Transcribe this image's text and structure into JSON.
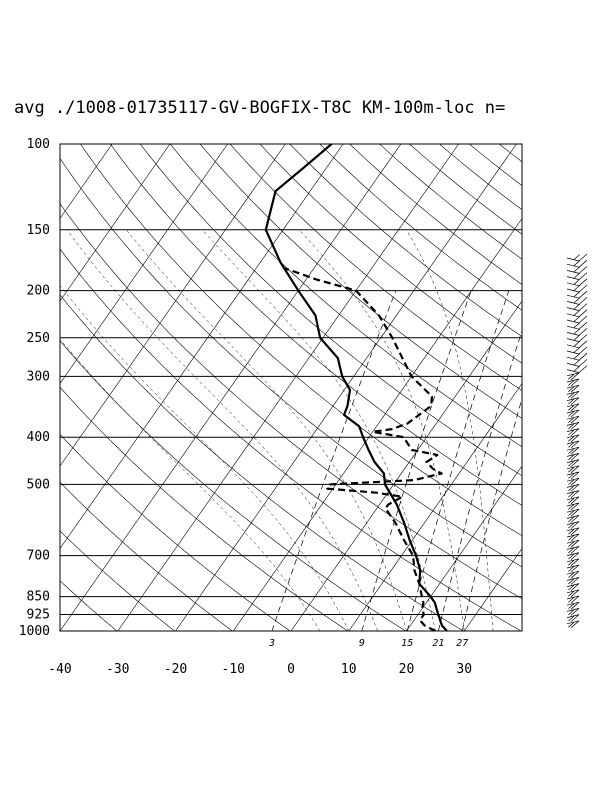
{
  "chart_data": {
    "type": "line",
    "subtype": "skew-T log-P sounding",
    "title": "avg ./1008-01735117-GV-BOGFIX-T8C KM-100m-loc n=",
    "x_axis": {
      "label": "",
      "ticks": [
        "-40",
        "-30",
        "-20",
        "-10",
        "0",
        "10",
        "20",
        "30"
      ],
      "range": [
        -40,
        40
      ]
    },
    "y_axis": {
      "label": "",
      "scale": "log",
      "range": [
        1000,
        100
      ],
      "ticks": [
        "100",
        "150",
        "200",
        "250",
        "300",
        "400",
        "500",
        "700",
        "850",
        "925",
        "1000"
      ]
    },
    "mixing_ratio_labels": [
      "3",
      "9",
      "15",
      "21",
      "27"
    ],
    "grid": true,
    "series": [
      {
        "style": "solid",
        "points": [
          [
            1000,
            27
          ],
          [
            975,
            25.5
          ],
          [
            950,
            24.5
          ],
          [
            925,
            23.5
          ],
          [
            900,
            22.5
          ],
          [
            875,
            21.5
          ],
          [
            850,
            20
          ],
          [
            800,
            16.5
          ],
          [
            750,
            15
          ],
          [
            700,
            12.5
          ],
          [
            650,
            9.5
          ],
          [
            600,
            6.5
          ],
          [
            550,
            3
          ],
          [
            500,
            -1.5
          ],
          [
            475,
            -3
          ],
          [
            450,
            -6
          ],
          [
            425,
            -8.5
          ],
          [
            400,
            -11
          ],
          [
            380,
            -13
          ],
          [
            360,
            -17
          ],
          [
            345,
            -17.5
          ],
          [
            320,
            -19
          ],
          [
            300,
            -22
          ],
          [
            275,
            -25
          ],
          [
            250,
            -30.5
          ],
          [
            225,
            -34
          ],
          [
            200,
            -40
          ],
          [
            175,
            -46.5
          ],
          [
            150,
            -53
          ],
          [
            125,
            -56
          ],
          [
            112,
            -54
          ],
          [
            100,
            -52
          ]
        ]
      },
      {
        "style": "dashed",
        "points": [
          [
            1000,
            25
          ],
          [
            975,
            22.5
          ],
          [
            950,
            21
          ],
          [
            925,
            21
          ],
          [
            900,
            20
          ],
          [
            875,
            19.5
          ],
          [
            850,
            18.5
          ],
          [
            800,
            16.5
          ],
          [
            750,
            14
          ],
          [
            700,
            12
          ],
          [
            650,
            8.5
          ],
          [
            600,
            5
          ],
          [
            560,
            1.5
          ],
          [
            550,
            1.5
          ],
          [
            530,
            3
          ],
          [
            520,
            -2
          ],
          [
            510,
            -11
          ],
          [
            500,
            -11
          ],
          [
            490,
            3
          ],
          [
            475,
            7
          ],
          [
            465,
            5
          ],
          [
            450,
            3
          ],
          [
            435,
            4
          ],
          [
            425,
            -1
          ],
          [
            400,
            -4
          ],
          [
            390,
            -10
          ],
          [
            385,
            -7
          ],
          [
            375,
            -5
          ],
          [
            345,
            -3
          ],
          [
            330,
            -4
          ],
          [
            300,
            -10
          ],
          [
            250,
            -18
          ],
          [
            225,
            -23
          ],
          [
            200,
            -30
          ],
          [
            190,
            -38
          ],
          [
            180,
            -45
          ]
        ]
      }
    ]
  }
}
